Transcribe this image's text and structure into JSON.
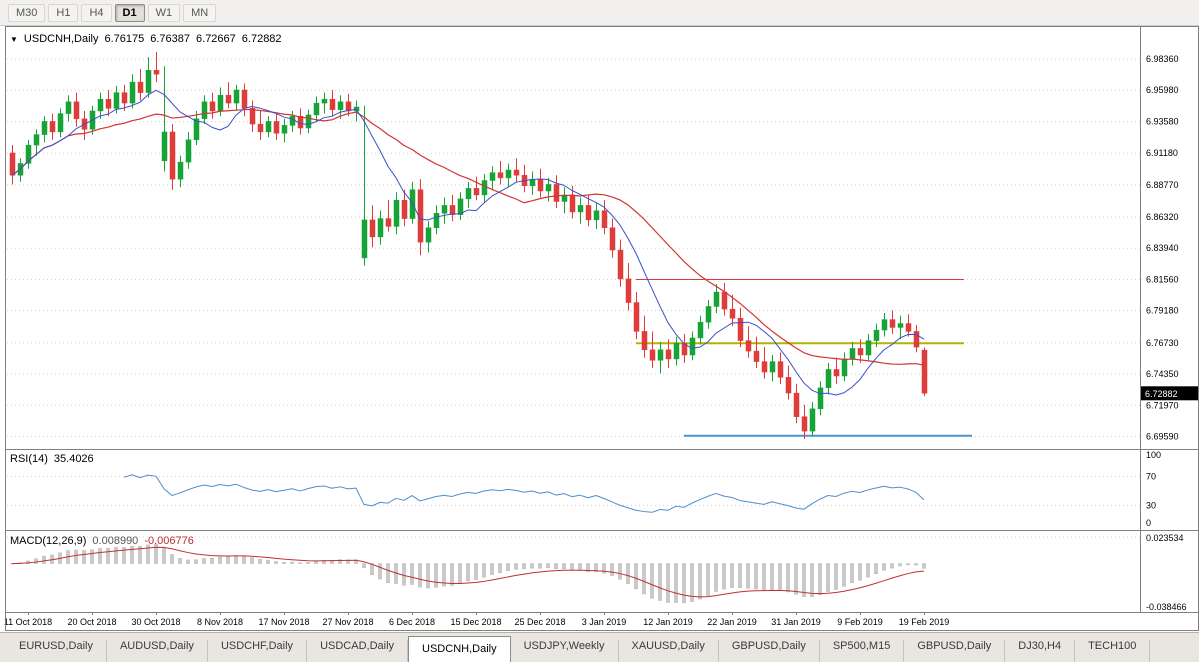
{
  "toolbar": {
    "periods": [
      {
        "label": "M30",
        "active": false
      },
      {
        "label": "H1",
        "active": false
      },
      {
        "label": "H4",
        "active": false
      },
      {
        "label": "D1",
        "active": true
      },
      {
        "label": "W1",
        "active": false
      },
      {
        "label": "MN",
        "active": false
      }
    ]
  },
  "chart": {
    "title": {
      "symbol_label": "USDCNH,Daily",
      "open": "6.76175",
      "high": "6.76387",
      "low": "6.72667",
      "close": "6.72882"
    },
    "price_axis_labels": [
      "6.98360",
      "6.95980",
      "6.93580",
      "6.91180",
      "6.88770",
      "6.86320",
      "6.83940",
      "6.81560",
      "6.79180",
      "6.76730",
      "6.74350",
      "6.71970",
      "6.69590"
    ],
    "current_price": "6.72882"
  },
  "rsi": {
    "label": "RSI(14)",
    "value": "35.4026",
    "axis_labels": [
      "100",
      "70",
      "30",
      "0"
    ],
    "grid_levels": [
      70,
      30
    ]
  },
  "macd": {
    "label": "MACD(12,26,9)",
    "main_value": "0.008990",
    "signal_value": "-0.006776",
    "axis_labels": [
      "0.023534",
      "-0.038466"
    ]
  },
  "date_axis": [
    "11 Oct 2018",
    "20 Oct 2018",
    "30 Oct 2018",
    "8 Nov 2018",
    "17 Nov 2018",
    "27 Nov 2018",
    "6 Dec 2018",
    "15 Dec 2018",
    "25 Dec 2018",
    "3 Jan 2019",
    "12 Jan 2019",
    "22 Jan 2019",
    "31 Jan 2019",
    "9 Feb 2019",
    "19 Feb 2019"
  ],
  "tabs": [
    {
      "label": "EURUSD,Daily",
      "active": false
    },
    {
      "label": "AUDUSD,Daily",
      "active": false
    },
    {
      "label": "USDCHF,Daily",
      "active": false
    },
    {
      "label": "USDCAD,Daily",
      "active": false
    },
    {
      "label": "USDCNH,Daily",
      "active": true
    },
    {
      "label": "USDJPY,Weekly",
      "active": false
    },
    {
      "label": "XAUUSD,Daily",
      "active": false
    },
    {
      "label": "GBPUSD,Daily",
      "active": false
    },
    {
      "label": "SP500,M15",
      "active": false
    },
    {
      "label": "GBPUSD,Daily",
      "active": false
    },
    {
      "label": "DJ30,H4",
      "active": false
    },
    {
      "label": "TECH100",
      "active": false
    }
  ],
  "colors": {
    "bull": "#16a437",
    "bear": "#e03c3c",
    "ma_fast": "#3a50c8",
    "ma_slow": "#d23434",
    "rsi_line": "#4d8fcc",
    "macd_bar_fill": "#c9c9c9",
    "macd_bar_stroke": "#b0b0b0",
    "macd_signal": "#c03030",
    "hline_red": "#e03838",
    "hline_olive": "#b4b400",
    "hline_blue": "#4a96d2",
    "grid": "#d4d4d4",
    "frame": "#808080",
    "badge_bg": "#000000",
    "badge_text": "#ffffff",
    "axis_text": "#000000"
  },
  "chart_data": {
    "type": "candlestick",
    "symbol": "USDCNH",
    "timeframe": "Daily",
    "last_ohlc": {
      "open": 6.76175,
      "high": 6.76387,
      "low": 6.72667,
      "close": 6.72882
    },
    "price_axis_min": 6.6959,
    "price_axis_max": 6.9836,
    "date_tick_indices": [
      2,
      10,
      18,
      26,
      34,
      42,
      50,
      58,
      66,
      74,
      82,
      90,
      98,
      106,
      114
    ],
    "ohlc": [
      [
        6.912,
        6.918,
        6.888,
        6.895
      ],
      [
        6.895,
        6.908,
        6.89,
        6.904
      ],
      [
        6.904,
        6.922,
        6.9,
        6.918
      ],
      [
        6.918,
        6.93,
        6.91,
        6.926
      ],
      [
        6.926,
        6.94,
        6.92,
        6.936
      ],
      [
        6.936,
        6.942,
        6.922,
        6.928
      ],
      [
        6.928,
        6.946,
        6.924,
        6.942
      ],
      [
        6.942,
        6.956,
        6.936,
        6.951
      ],
      [
        6.951,
        6.958,
        6.932,
        6.938
      ],
      [
        6.938,
        6.944,
        6.922,
        6.93
      ],
      [
        6.93,
        6.948,
        6.926,
        6.944
      ],
      [
        6.944,
        6.958,
        6.938,
        6.953
      ],
      [
        6.953,
        6.96,
        6.94,
        6.946
      ],
      [
        6.946,
        6.963,
        6.942,
        6.958
      ],
      [
        6.958,
        6.964,
        6.944,
        6.95
      ],
      [
        6.95,
        6.972,
        6.946,
        6.966
      ],
      [
        6.966,
        6.976,
        6.952,
        6.958
      ],
      [
        6.958,
        6.985,
        6.954,
        6.975
      ],
      [
        6.975,
        6.989,
        6.966,
        6.972
      ],
      [
        6.906,
        6.978,
        6.898,
        6.928
      ],
      [
        6.928,
        6.934,
        6.884,
        6.892
      ],
      [
        6.892,
        6.91,
        6.886,
        6.905
      ],
      [
        6.905,
        6.928,
        6.9,
        6.922
      ],
      [
        6.922,
        6.944,
        6.918,
        6.938
      ],
      [
        6.938,
        6.956,
        6.934,
        6.951
      ],
      [
        6.951,
        6.958,
        6.938,
        6.944
      ],
      [
        6.944,
        6.962,
        6.94,
        6.956
      ],
      [
        6.956,
        6.966,
        6.946,
        6.95
      ],
      [
        6.95,
        6.964,
        6.944,
        6.96
      ],
      [
        6.96,
        6.965,
        6.94,
        6.946
      ],
      [
        6.946,
        6.952,
        6.928,
        6.934
      ],
      [
        6.934,
        6.944,
        6.922,
        6.928
      ],
      [
        6.928,
        6.94,
        6.924,
        6.936
      ],
      [
        6.936,
        6.942,
        6.922,
        6.927
      ],
      [
        6.927,
        6.938,
        6.92,
        6.933
      ],
      [
        6.933,
        6.944,
        6.928,
        6.94
      ],
      [
        6.94,
        6.946,
        6.926,
        6.931
      ],
      [
        6.931,
        6.945,
        6.927,
        6.941
      ],
      [
        6.941,
        6.955,
        6.936,
        6.95
      ],
      [
        6.95,
        6.958,
        6.942,
        6.953
      ],
      [
        6.953,
        6.96,
        6.94,
        6.945
      ],
      [
        6.945,
        6.956,
        6.938,
        6.951
      ],
      [
        6.951,
        6.957,
        6.94,
        6.944
      ],
      [
        6.944,
        6.952,
        6.936,
        6.947
      ],
      [
        6.832,
        6.948,
        6.826,
        6.861
      ],
      [
        6.861,
        6.872,
        6.84,
        6.848
      ],
      [
        6.848,
        6.868,
        6.842,
        6.862
      ],
      [
        6.862,
        6.876,
        6.852,
        6.856
      ],
      [
        6.856,
        6.882,
        6.85,
        6.876
      ],
      [
        6.876,
        6.884,
        6.856,
        6.862
      ],
      [
        6.862,
        6.89,
        6.858,
        6.884
      ],
      [
        6.884,
        6.892,
        6.834,
        6.844
      ],
      [
        6.844,
        6.86,
        6.836,
        6.855
      ],
      [
        6.855,
        6.872,
        6.85,
        6.866
      ],
      [
        6.866,
        6.878,
        6.858,
        6.872
      ],
      [
        6.872,
        6.88,
        6.86,
        6.865
      ],
      [
        6.865,
        6.882,
        6.861,
        6.877
      ],
      [
        6.877,
        6.89,
        6.87,
        6.885
      ],
      [
        6.885,
        6.894,
        6.876,
        6.88
      ],
      [
        6.88,
        6.896,
        6.874,
        6.891
      ],
      [
        6.891,
        6.902,
        6.884,
        6.897
      ],
      [
        6.897,
        6.906,
        6.888,
        6.893
      ],
      [
        6.893,
        6.904,
        6.886,
        6.899
      ],
      [
        6.899,
        6.908,
        6.89,
        6.895
      ],
      [
        6.895,
        6.903,
        6.882,
        6.887
      ],
      [
        6.887,
        6.898,
        6.88,
        6.892
      ],
      [
        6.892,
        6.9,
        6.878,
        6.883
      ],
      [
        6.883,
        6.893,
        6.875,
        6.888
      ],
      [
        6.888,
        6.895,
        6.87,
        6.875
      ],
      [
        6.875,
        6.886,
        6.866,
        6.88
      ],
      [
        6.88,
        6.887,
        6.862,
        6.867
      ],
      [
        6.867,
        6.878,
        6.858,
        6.872
      ],
      [
        6.872,
        6.88,
        6.856,
        6.861
      ],
      [
        6.861,
        6.874,
        6.854,
        6.868
      ],
      [
        6.868,
        6.876,
        6.85,
        6.855
      ],
      [
        6.855,
        6.862,
        6.832,
        6.838
      ],
      [
        6.838,
        6.846,
        6.81,
        6.816
      ],
      [
        6.816,
        6.828,
        6.792,
        6.798
      ],
      [
        6.798,
        6.806,
        6.77,
        6.776
      ],
      [
        6.776,
        6.788,
        6.756,
        6.762
      ],
      [
        6.762,
        6.776,
        6.748,
        6.754
      ],
      [
        6.754,
        6.768,
        6.744,
        6.762
      ],
      [
        6.762,
        6.77,
        6.748,
        6.755
      ],
      [
        6.755,
        6.772,
        6.75,
        6.767
      ],
      [
        6.767,
        6.774,
        6.752,
        6.758
      ],
      [
        6.758,
        6.776,
        6.754,
        6.771
      ],
      [
        6.771,
        6.788,
        6.766,
        6.783
      ],
      [
        6.783,
        6.8,
        6.778,
        6.795
      ],
      [
        6.795,
        6.812,
        6.79,
        6.806
      ],
      [
        6.806,
        6.813,
        6.788,
        6.793
      ],
      [
        6.793,
        6.804,
        6.78,
        6.786
      ],
      [
        6.786,
        6.794,
        6.764,
        6.769
      ],
      [
        6.769,
        6.78,
        6.756,
        6.761
      ],
      [
        6.761,
        6.772,
        6.748,
        6.753
      ],
      [
        6.753,
        6.764,
        6.74,
        6.745
      ],
      [
        6.745,
        6.758,
        6.738,
        6.753
      ],
      [
        6.753,
        6.76,
        6.736,
        6.741
      ],
      [
        6.741,
        6.75,
        6.724,
        6.729
      ],
      [
        6.729,
        6.736,
        6.706,
        6.711
      ],
      [
        6.711,
        6.72,
        6.694,
        6.7
      ],
      [
        6.7,
        6.722,
        6.696,
        6.717
      ],
      [
        6.717,
        6.738,
        6.712,
        6.733
      ],
      [
        6.733,
        6.752,
        6.728,
        6.747
      ],
      [
        6.747,
        6.756,
        6.736,
        6.742
      ],
      [
        6.742,
        6.76,
        6.738,
        6.755
      ],
      [
        6.755,
        6.768,
        6.75,
        6.763
      ],
      [
        6.763,
        6.77,
        6.752,
        6.758
      ],
      [
        6.758,
        6.774,
        6.754,
        6.769
      ],
      [
        6.769,
        6.782,
        6.764,
        6.777
      ],
      [
        6.777,
        6.79,
        6.772,
        6.785
      ],
      [
        6.785,
        6.792,
        6.774,
        6.779
      ],
      [
        6.779,
        6.788,
        6.77,
        6.782
      ],
      [
        6.782,
        6.789,
        6.772,
        6.776
      ],
      [
        6.776,
        6.781,
        6.76,
        6.764
      ],
      [
        6.76175,
        6.76387,
        6.72667,
        6.72882
      ]
    ],
    "overlays": {
      "ma_fast_period": 8,
      "ma_slow_period": 21,
      "hlines": [
        {
          "price": 6.8156,
          "from_index": 78,
          "to_index": 119,
          "color_key": "hline_red",
          "width": 1
        },
        {
          "price": 6.767,
          "from_index": 78,
          "to_index": 119,
          "color_key": "hline_olive",
          "width": 2
        },
        {
          "price": 6.6965,
          "from_index": 84,
          "to_index": 120,
          "color_key": "hline_blue",
          "width": 2
        }
      ]
    },
    "indicators": {
      "rsi": {
        "period": 14,
        "range": [
          0,
          100
        ],
        "levels": [
          70,
          30
        ]
      },
      "macd": {
        "fast": 12,
        "slow": 26,
        "signal": 9,
        "range": [
          -0.038466,
          0.023534
        ]
      }
    }
  }
}
